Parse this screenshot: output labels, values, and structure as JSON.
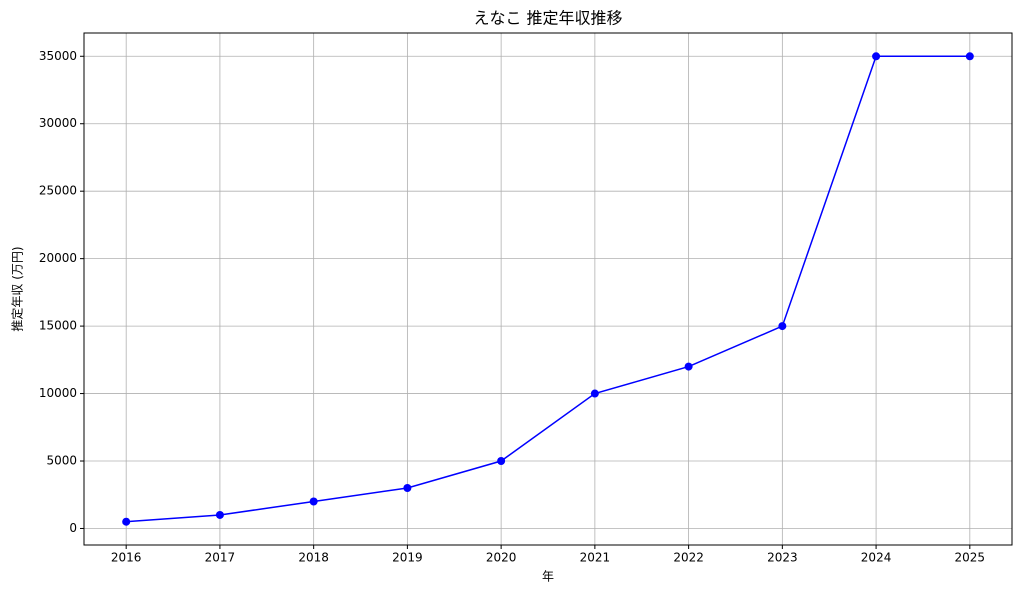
{
  "chart_data": {
    "type": "line",
    "title": "えなこ 推定年収推移",
    "xlabel": "年",
    "ylabel": "推定年収 (万円)",
    "x": [
      2016,
      2017,
      2018,
      2019,
      2020,
      2021,
      2022,
      2023,
      2024,
      2025
    ],
    "series": [
      {
        "name": "推定年収",
        "color": "#0000ff",
        "values": [
          500,
          1000,
          2000,
          3000,
          5000,
          10000,
          12000,
          15000,
          35000,
          35000
        ]
      }
    ],
    "xlim": [
      2015.55,
      2025.45
    ],
    "xticks": [
      2016,
      2017,
      2018,
      2019,
      2020,
      2021,
      2022,
      2023,
      2024,
      2025
    ],
    "ylim": [
      -1225,
      36725
    ],
    "yticks": [
      0,
      5000,
      10000,
      15000,
      20000,
      25000,
      30000,
      35000
    ],
    "grid": true,
    "marker": "circle"
  }
}
